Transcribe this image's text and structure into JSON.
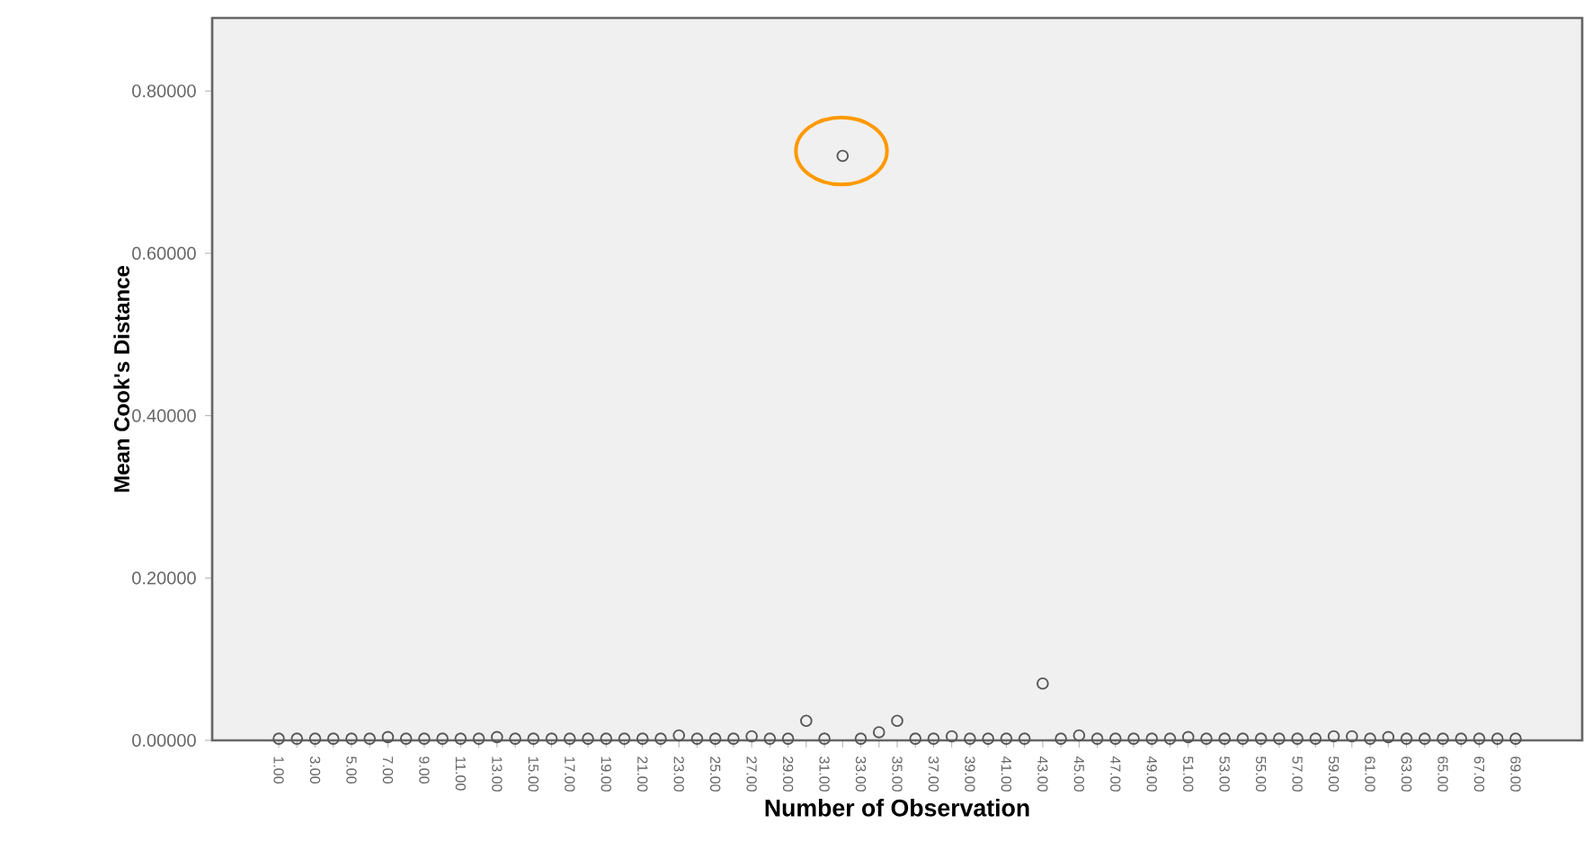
{
  "chart_data": {
    "type": "scatter",
    "xlabel": "Number of Observation",
    "ylabel": "Mean Cook's Distance",
    "categories": [
      "1.00",
      null,
      "3.00",
      null,
      "5.00",
      null,
      "7.00",
      null,
      "9.00",
      null,
      "11.00",
      null,
      "13.00",
      null,
      "15.00",
      null,
      "17.00",
      null,
      "19.00",
      null,
      "21.00",
      null,
      "23.00",
      null,
      "25.00",
      null,
      "27.00",
      null,
      "29.00",
      null,
      "31.00",
      null,
      "33.00",
      null,
      "35.00",
      null,
      "37.00",
      null,
      "39.00",
      null,
      "41.00",
      null,
      "43.00",
      null,
      "45.00",
      null,
      "47.00",
      null,
      "49.00",
      null,
      "51.00",
      null,
      "53.00",
      null,
      "55.00",
      null,
      "57.00",
      null,
      "59.00",
      null,
      "61.00",
      null,
      "63.00",
      null,
      "65.00",
      null,
      "67.00",
      null,
      "69.00"
    ],
    "values": [
      0.002,
      0.002,
      0.002,
      0.002,
      0.002,
      0.002,
      0.004,
      0.002,
      0.002,
      0.002,
      0.002,
      0.002,
      0.004,
      0.002,
      0.002,
      0.002,
      0.002,
      0.002,
      0.002,
      0.002,
      0.002,
      0.002,
      0.006,
      0.002,
      0.002,
      0.002,
      0.005,
      0.002,
      0.002,
      0.024,
      0.002,
      0.72,
      0.002,
      0.01,
      0.024,
      0.002,
      0.002,
      0.005,
      0.002,
      0.002,
      0.002,
      0.002,
      0.07,
      0.002,
      0.006,
      0.002,
      0.002,
      0.002,
      0.002,
      0.002,
      0.004,
      0.002,
      0.002,
      0.002,
      0.002,
      0.002,
      0.002,
      0.002,
      0.005,
      0.005,
      0.002,
      0.004,
      0.002,
      0.002,
      0.002,
      0.002,
      0.002,
      0.002,
      0.002
    ],
    "color": "#555555",
    "marker": "circle",
    "ylim": [
      0,
      0.89
    ],
    "yticks": [
      {
        "value": 0,
        "label": "0.00000"
      },
      {
        "value": 0.2,
        "label": "0.20000"
      },
      {
        "value": 0.4,
        "label": "0.40000"
      },
      {
        "value": 0.6,
        "label": "0.60000"
      },
      {
        "value": 0.8,
        "label": "0.80000"
      }
    ]
  }
}
